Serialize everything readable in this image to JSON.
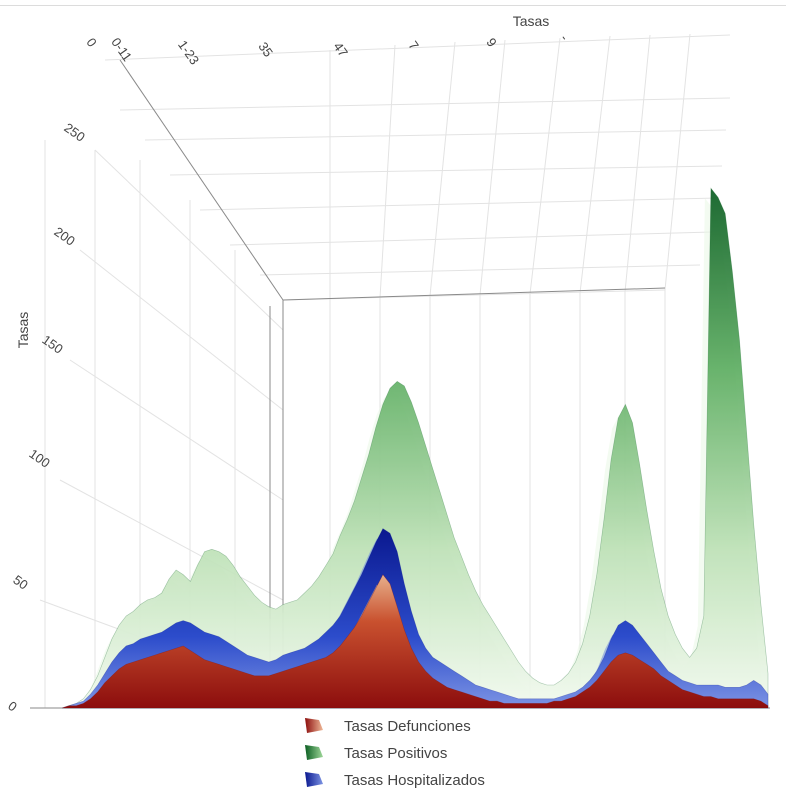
{
  "chart_data": {
    "type": "area",
    "variant": "3d-surface",
    "title": "",
    "y_axis": {
      "label": "Tasas",
      "ticks": [
        "0",
        "50",
        "100",
        "150",
        "200",
        "250"
      ],
      "range": [
        0,
        280
      ]
    },
    "x_axis": {
      "label": "Tasas",
      "tick_labels_visible": [
        "0",
        "0-11",
        "1-23",
        "35",
        "47",
        "7",
        "9",
        "-"
      ]
    },
    "categories_count": 100,
    "series": [
      {
        "name": "Tasas Positivos",
        "color": "#2e8b3a",
        "color_light": "#eaf7e6",
        "color_dark": "#005a1e",
        "values": [
          0,
          1,
          2,
          4,
          8,
          14,
          22,
          30,
          36,
          40,
          42,
          45,
          47,
          48,
          50,
          56,
          60,
          58,
          55,
          62,
          68,
          69,
          68,
          66,
          62,
          57,
          53,
          49,
          46,
          44,
          43,
          45,
          46,
          47,
          50,
          53,
          57,
          62,
          67,
          75,
          82,
          90,
          100,
          110,
          122,
          132,
          139,
          142,
          140,
          133,
          124,
          114,
          104,
          94,
          84,
          74,
          66,
          58,
          51,
          45,
          40,
          35,
          30,
          25,
          20,
          16,
          13,
          11,
          10,
          10,
          12,
          15,
          20,
          28,
          40,
          58,
          82,
          108,
          126,
          132,
          124,
          106,
          86,
          68,
          52,
          40,
          32,
          26,
          22,
          26,
          40,
          226,
          222,
          215,
          190,
          160,
          120,
          80,
          45,
          15
        ]
      },
      {
        "name": "Tasas Hospitalizados",
        "color": "#2a45c8",
        "color_light": "#6f8ae0",
        "color_dark": "#0a1890",
        "values": [
          0,
          1,
          2,
          3,
          6,
          10,
          15,
          20,
          24,
          27,
          28,
          30,
          31,
          32,
          33,
          35,
          37,
          38,
          37,
          35,
          33,
          32,
          31,
          29,
          27,
          25,
          23,
          22,
          21,
          20,
          21,
          23,
          24,
          25,
          26,
          28,
          30,
          33,
          36,
          40,
          46,
          52,
          58,
          65,
          72,
          78,
          76,
          68,
          54,
          42,
          32,
          26,
          22,
          20,
          18,
          16,
          14,
          12,
          10,
          9,
          8,
          7,
          6,
          5,
          4,
          4,
          4,
          4,
          4,
          4,
          5,
          6,
          7,
          9,
          12,
          16,
          22,
          30,
          36,
          38,
          36,
          32,
          28,
          24,
          20,
          16,
          14,
          12,
          11,
          10,
          10,
          10,
          10,
          9,
          9,
          9,
          10,
          12,
          10,
          6
        ]
      },
      {
        "name": "Tasas Defunciones",
        "color": "#b8261e",
        "color_light": "#e8b48a",
        "color_dark": "#7a0a0a",
        "values": [
          0,
          1,
          1,
          2,
          4,
          7,
          11,
          14,
          17,
          19,
          20,
          21,
          22,
          23,
          24,
          25,
          26,
          27,
          25,
          23,
          21,
          20,
          19,
          18,
          17,
          16,
          15,
          14,
          14,
          14,
          15,
          16,
          17,
          18,
          19,
          20,
          21,
          22,
          24,
          27,
          31,
          35,
          40,
          46,
          52,
          58,
          54,
          44,
          34,
          26,
          20,
          16,
          13,
          11,
          9,
          8,
          7,
          6,
          5,
          4,
          3,
          3,
          2,
          2,
          2,
          2,
          2,
          2,
          2,
          3,
          3,
          4,
          5,
          7,
          9,
          12,
          16,
          20,
          23,
          24,
          23,
          21,
          19,
          17,
          14,
          12,
          10,
          8,
          7,
          6,
          5,
          5,
          4,
          4,
          4,
          4,
          4,
          4,
          3,
          1
        ]
      }
    ],
    "legend": {
      "position": "bottom-center",
      "items": [
        {
          "name": "Tasas Defunciones",
          "icon": "red-surface-swatch-icon"
        },
        {
          "name": "Tasas Positivos",
          "icon": "green-surface-swatch-icon"
        },
        {
          "name": "Tasas Hospitalizados",
          "icon": "blue-surface-swatch-icon"
        }
      ]
    },
    "grid": true
  }
}
